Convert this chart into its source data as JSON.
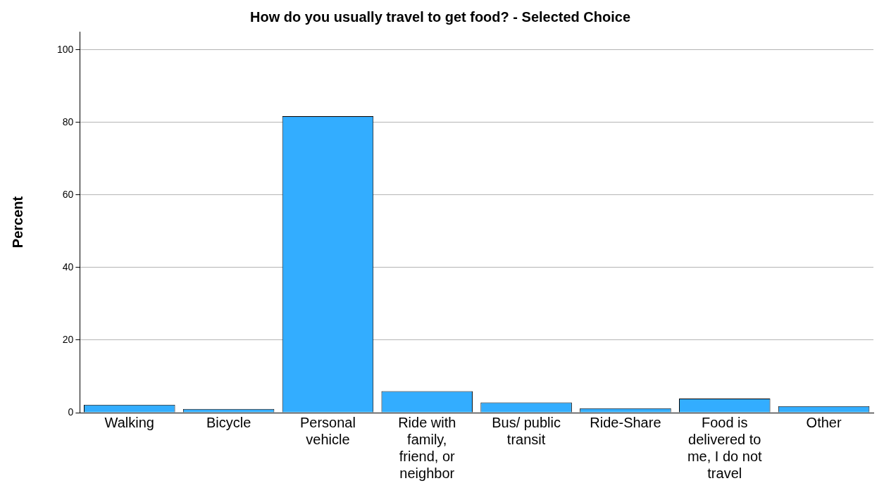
{
  "chart_data": {
    "type": "bar",
    "title": "How do you usually travel to get food? - Selected Choice",
    "ylabel": "Percent",
    "categories": [
      "Walking",
      "Bicycle",
      "Personal vehicle",
      "Ride with family, friend, or neighbor",
      "Bus/ public transit",
      "Ride-Share",
      "Food is delivered to me, I do not travel",
      "Other"
    ],
    "values": [
      2.2,
      1.0,
      81.7,
      5.9,
      2.8,
      1.2,
      3.9,
      1.8
    ],
    "color": "#33adff",
    "ylim": [
      0,
      105
    ],
    "yticks": [
      0,
      20,
      40,
      60,
      80,
      100
    ],
    "grid": "y"
  }
}
